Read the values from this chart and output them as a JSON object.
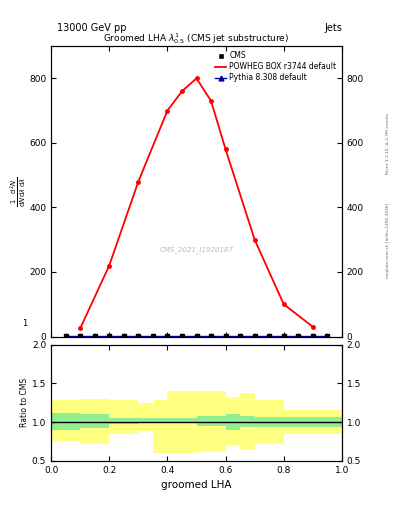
{
  "title": "Groomed LHA $\\lambda^{1}_{0.5}$ (CMS jet substructure)",
  "header_left": "13000 GeV pp",
  "header_right": "Jets",
  "watermark": "CMS_2021_I1920187",
  "right_label_top": "Rivet 3.1.10, ≥ 2.7M events",
  "right_label_bot": "mcplots.cern.ch [arXiv:1306.3436]",
  "xlabel": "groomed LHA",
  "ylabel": "$\\frac{1}{\\mathrm{d}N}\\frac{\\mathrm{d}^2N}{\\mathrm{d}\\lambda\\,\\mathrm{d}\\lambda}$",
  "ylabel_ratio": "Ratio to CMS",
  "cms_x": [
    0.05,
    0.1,
    0.15,
    0.2,
    0.25,
    0.3,
    0.35,
    0.4,
    0.45,
    0.5,
    0.55,
    0.6,
    0.65,
    0.7,
    0.75,
    0.8,
    0.85,
    0.9,
    0.95
  ],
  "cms_y": [
    2,
    2,
    2,
    2,
    2,
    2,
    2,
    2,
    2,
    2,
    2,
    2,
    2,
    2,
    2,
    2,
    2,
    2,
    2
  ],
  "powheg_x": [
    0.1,
    0.2,
    0.3,
    0.4,
    0.45,
    0.5,
    0.55,
    0.6,
    0.7,
    0.8,
    0.9
  ],
  "powheg_y": [
    25,
    220,
    480,
    700,
    760,
    800,
    730,
    580,
    300,
    100,
    30
  ],
  "pythia_x": [
    0.05,
    0.1,
    0.15,
    0.2,
    0.25,
    0.3,
    0.35,
    0.4,
    0.45,
    0.5,
    0.55,
    0.6,
    0.65,
    0.7,
    0.75,
    0.8,
    0.85,
    0.9,
    0.95
  ],
  "pythia_y": [
    2,
    2,
    2,
    2,
    2,
    2,
    2,
    2,
    2,
    2,
    2,
    2,
    2,
    2,
    2,
    2,
    2,
    2,
    2
  ],
  "ratio_x_edges": [
    0.0,
    0.1,
    0.2,
    0.3,
    0.35,
    0.4,
    0.5,
    0.6,
    0.65,
    0.7,
    0.8,
    1.0
  ],
  "ratio_green_lo": [
    0.9,
    0.92,
    0.97,
    1.0,
    1.0,
    1.0,
    0.95,
    0.9,
    0.93,
    0.93,
    0.93,
    0.93
  ],
  "ratio_green_hi": [
    1.12,
    1.1,
    1.05,
    1.05,
    1.05,
    1.05,
    1.08,
    1.1,
    1.08,
    1.06,
    1.06,
    1.06
  ],
  "ratio_yellow_lo": [
    0.75,
    0.72,
    0.85,
    0.88,
    0.6,
    0.6,
    0.62,
    0.7,
    0.65,
    0.72,
    0.85,
    0.85
  ],
  "ratio_yellow_hi": [
    1.28,
    1.3,
    1.28,
    1.25,
    1.28,
    1.4,
    1.4,
    1.32,
    1.38,
    1.28,
    1.15,
    1.15
  ],
  "ylim_main": [
    0,
    900
  ],
  "ylim_ratio": [
    0.5,
    2.0
  ],
  "yticks_main": [
    0,
    200,
    400,
    600,
    800
  ],
  "yticks_ratio": [
    0.5,
    1.0,
    1.5,
    2.0
  ],
  "color_powheg": "#ff0000",
  "color_pythia": "#0000aa",
  "color_cms": "#000000",
  "color_green": "#90ee90",
  "color_yellow": "#ffff80",
  "color_ratio_line": "#000000",
  "bg_color": "#ffffff"
}
